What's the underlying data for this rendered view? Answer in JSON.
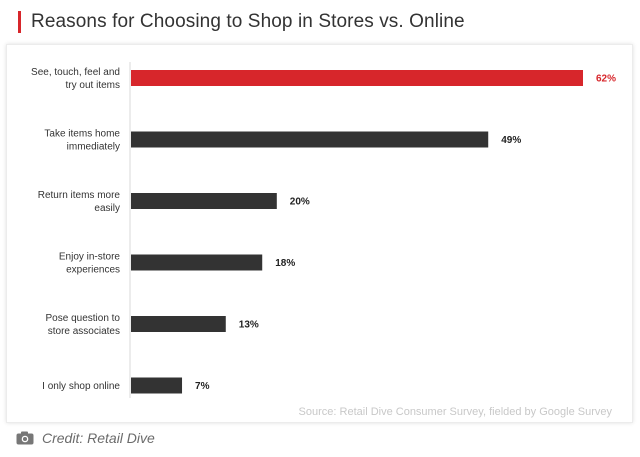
{
  "title": "Reasons for Choosing to Shop in Stores vs. Online",
  "source": "Source: Retail Dive Consumer Survey, fielded by Google Survey",
  "credit": "Credit: Retail Dive",
  "icons": {
    "credit": "camera-icon"
  },
  "colors": {
    "highlight": "#d7262b",
    "bar": "#333333",
    "accent": "#d7262b"
  },
  "chart_data": {
    "type": "bar",
    "orientation": "horizontal",
    "categories": [
      [
        "See, touch, feel and",
        "try out items"
      ],
      [
        "Take items home",
        "immediately"
      ],
      [
        "Return items more",
        "easily"
      ],
      [
        "Enjoy in-store",
        "experiences"
      ],
      [
        "Pose question to",
        "store associates"
      ],
      [
        "I only shop online"
      ]
    ],
    "values": [
      62,
      49,
      20,
      18,
      13,
      7
    ],
    "value_labels": [
      "62%",
      "49%",
      "20%",
      "18%",
      "13%",
      "7%"
    ],
    "highlight_index": 0,
    "xlim": [
      0,
      62
    ],
    "grid": false
  }
}
